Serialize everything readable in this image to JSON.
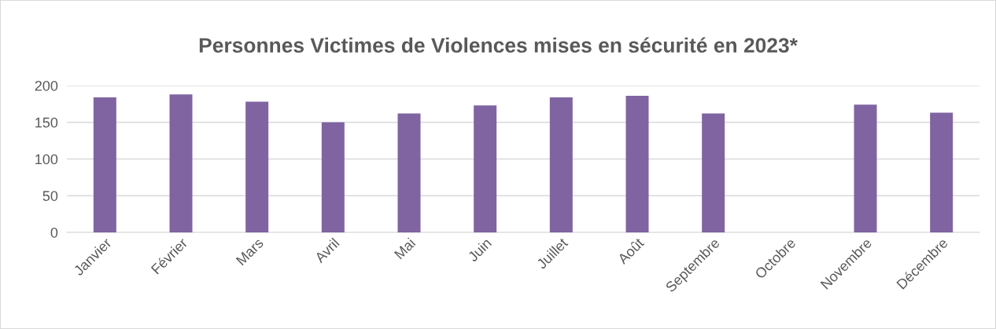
{
  "chart_data": {
    "type": "bar",
    "title": "Personnes Victimes de Violences mises en sécurité en 2023*",
    "categories": [
      "Janvier",
      "Février",
      "Mars",
      "Avril",
      "Mai",
      "Juin",
      "Juillet",
      "Août",
      "Septembre",
      "Octobre",
      "Novembre",
      "Décembre"
    ],
    "values": [
      184,
      188,
      178,
      150,
      162,
      173,
      184,
      186,
      162,
      null,
      174,
      163
    ],
    "color": "#8064a2",
    "ylim": [
      0,
      200
    ],
    "yticks": [
      0,
      50,
      100,
      150,
      200
    ],
    "grid": "y"
  }
}
